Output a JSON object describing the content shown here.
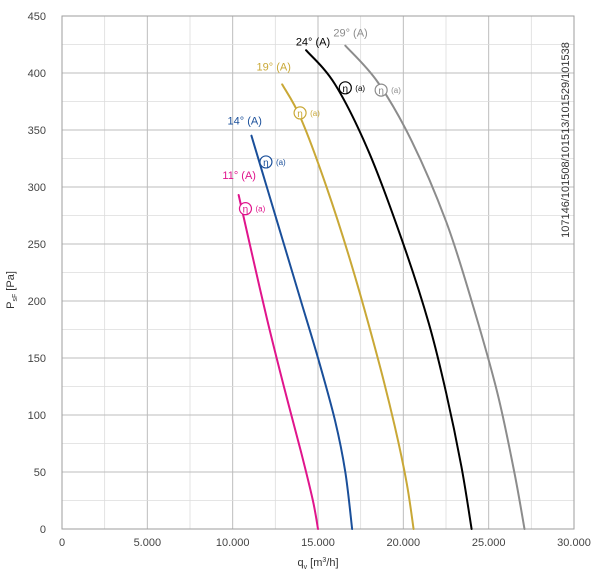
{
  "chart_data": {
    "type": "line",
    "xlabel": "q_v [m³/h]",
    "ylabel": "P_sF [Pa]",
    "ylabel_main": "P",
    "ylabel_sub": "sF",
    "ylabel_unit": " [Pa]",
    "xlabel_main": "q",
    "xlabel_sub": "v",
    "xlabel_unit_pre": " [m",
    "xlabel_unit_sup": "3",
    "xlabel_unit_post": "/h]",
    "xlim": [
      0,
      30000
    ],
    "ylim": [
      0,
      450
    ],
    "grid": true,
    "x_ticks": [
      0,
      5000,
      10000,
      15000,
      20000,
      25000,
      30000
    ],
    "x_tick_labels": [
      "0",
      "5.000",
      "10.000",
      "15.000",
      "20.000",
      "25.000",
      "30.000"
    ],
    "y_ticks": [
      0,
      50,
      100,
      150,
      200,
      250,
      300,
      350,
      400,
      450
    ],
    "y_tick_labels": [
      "0",
      "50",
      "100",
      "150",
      "200",
      "250",
      "300",
      "350",
      "400",
      "450"
    ],
    "side_label": "107146/101508/101513/101529/101538",
    "eta_symbol": "η",
    "eta_suffix": "(a)",
    "series": [
      {
        "name": "11° (A)",
        "color": "#e0158c",
        "points": [
          [
            10350,
            293
          ],
          [
            11000,
            250
          ],
          [
            12000,
            185
          ],
          [
            13000,
            125
          ],
          [
            14000,
            68
          ],
          [
            14700,
            25
          ],
          [
            15000,
            0
          ]
        ],
        "eta_point": [
          10750,
          281
        ]
      },
      {
        "name": "14° (A)",
        "color": "#1a4f9a",
        "points": [
          [
            11100,
            345
          ],
          [
            12000,
            300
          ],
          [
            13000,
            250
          ],
          [
            14000,
            200
          ],
          [
            15000,
            150
          ],
          [
            16000,
            95
          ],
          [
            16600,
            50
          ],
          [
            17000,
            0
          ]
        ],
        "eta_point": [
          11950,
          322
        ]
      },
      {
        "name": "19° (A)",
        "color": "#c9a836",
        "points": [
          [
            12900,
            390
          ],
          [
            14000,
            360
          ],
          [
            15500,
            300
          ],
          [
            17000,
            230
          ],
          [
            18500,
            150
          ],
          [
            19500,
            90
          ],
          [
            20200,
            40
          ],
          [
            20600,
            0
          ]
        ],
        "eta_point": [
          13950,
          365
        ]
      },
      {
        "name": "24° (A)",
        "color": "#000000",
        "points": [
          [
            14300,
            420
          ],
          [
            16000,
            390
          ],
          [
            18000,
            330
          ],
          [
            20000,
            250
          ],
          [
            21500,
            180
          ],
          [
            22500,
            120
          ],
          [
            23400,
            55
          ],
          [
            24000,
            0
          ]
        ],
        "eta_point": [
          16600,
          387
        ]
      },
      {
        "name": "29° (A)",
        "color": "#8c8c8c",
        "points": [
          [
            16600,
            424
          ],
          [
            18500,
            392
          ],
          [
            20500,
            340
          ],
          [
            22500,
            270
          ],
          [
            24000,
            200
          ],
          [
            25500,
            120
          ],
          [
            26500,
            50
          ],
          [
            27100,
            0
          ]
        ],
        "eta_point": [
          18700,
          385
        ]
      }
    ],
    "series_label_positions": [
      [
        9400,
        307
      ],
      [
        9700,
        355
      ],
      [
        11400,
        402
      ],
      [
        13700,
        424
      ],
      [
        15900,
        432
      ]
    ]
  }
}
